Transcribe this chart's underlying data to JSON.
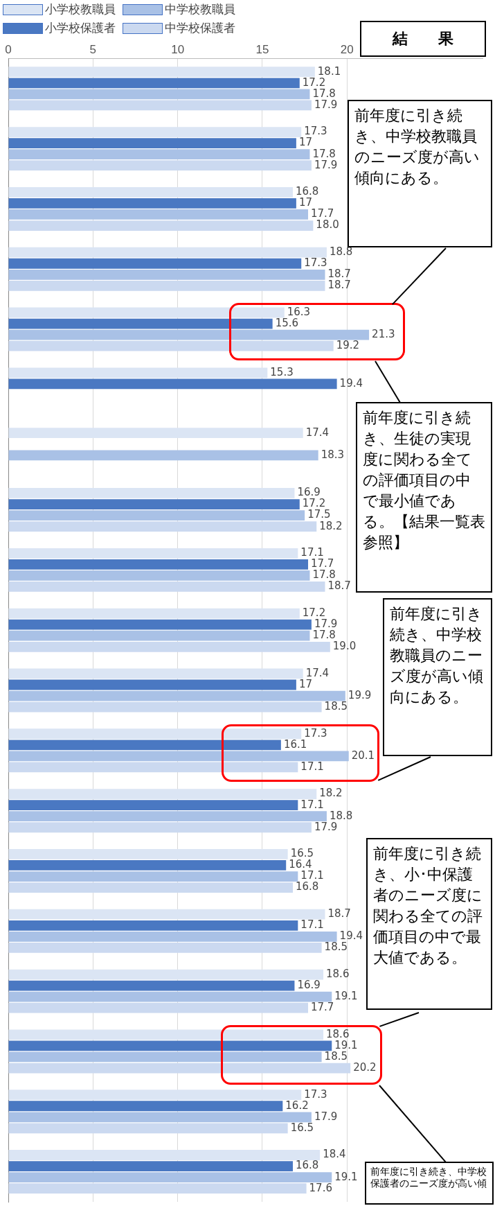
{
  "chart_data": {
    "type": "bar",
    "orientation": "horizontal",
    "categories": [
      null,
      null,
      null,
      null,
      null,
      null,
      null,
      null,
      null,
      null,
      null,
      null,
      null,
      null,
      null,
      null,
      null,
      null,
      null
    ],
    "series": [
      {
        "name": "小学校教職員",
        "color": "#dbe5f4",
        "values": [
          18.1,
          17.3,
          16.8,
          18.8,
          16.3,
          15.3,
          17.4,
          16.9,
          17.1,
          17.2,
          17.4,
          17.3,
          18.2,
          16.5,
          18.7,
          18.6,
          18.6,
          17.3,
          18.4
        ],
        "value_labels": [
          "18.1",
          "17.3",
          "16.8",
          "18.8",
          "16.3",
          "15.3",
          "17.4",
          "16.9",
          "17.1",
          "17.2",
          "17.4",
          "17.3",
          "18.2",
          "16.5",
          "18.7",
          "18.6",
          "18.6",
          "17.3",
          "18.4"
        ]
      },
      {
        "name": "小学校保護者",
        "color": "#4a78c2",
        "values": [
          17.2,
          17,
          17,
          17.3,
          15.6,
          19.4,
          null,
          17.2,
          17.7,
          17.9,
          17,
          16.1,
          17.1,
          16.4,
          17.1,
          16.9,
          19.1,
          16.2,
          16.8
        ],
        "value_labels": [
          "17.2",
          "17",
          "17",
          "17.3",
          "15.6",
          "19.4",
          null,
          "17.2",
          "17.7",
          "17.9",
          "17",
          "16.1",
          "17.1",
          "16.4",
          "17.1",
          "16.9",
          "19.1",
          "16.2",
          "16.8"
        ]
      },
      {
        "name": "中学校教職員",
        "color": "#a9c1e6",
        "values": [
          17.8,
          17.8,
          17.7,
          18.7,
          21.3,
          null,
          18.3,
          17.5,
          17.8,
          17.8,
          19.9,
          20.1,
          18.8,
          17.1,
          19.4,
          19.1,
          18.5,
          17.9,
          19.1
        ],
        "value_labels": [
          "17.8",
          "17.8",
          "17.7",
          "18.7",
          "21.3",
          null,
          "18.3",
          "17.5",
          "17.8",
          "17.8",
          "19.9",
          "20.1",
          "18.8",
          "17.1",
          "19.4",
          "19.1",
          "18.5",
          "17.9",
          "19.1"
        ]
      },
      {
        "name": "中学校保護者",
        "color": "#cbd9f0",
        "values": [
          17.9,
          17.9,
          18.0,
          18.7,
          19.2,
          null,
          null,
          18.2,
          18.7,
          19.0,
          18.5,
          17.1,
          17.9,
          16.8,
          18.5,
          17.7,
          20.2,
          16.5,
          17.6
        ],
        "value_labels": [
          "17.9",
          "17.9",
          "18.0",
          "18.7",
          "19.2",
          null,
          null,
          "18.2",
          "18.7",
          "19.0",
          "18.5",
          "17.1",
          "17.9",
          "16.8",
          "18.5",
          "17.7",
          "20.2",
          "16.5",
          "17.6"
        ]
      }
    ],
    "xlim": [
      0,
      28
    ],
    "xticks": [
      0,
      5,
      10,
      15,
      20
    ],
    "grid": "x",
    "legend": "top left",
    "tick_labels": "x",
    "annotations": [
      "結　　果",
      "前年度に引き続き、中学校教職員のニーズ度が高い傾向にある。",
      "前年度に引き続き、生徒の実現度に関わる全ての評価項目の中で最小値である。【結果一覧表参照】",
      "前年度に引き続き、中学校教職員のニーズ度が高い傾向にある。",
      "前年度に引き続き、小･中保護者のニーズ度に関わる全ての評価項目の中で最大値である。",
      "前年度に引き続き、中学校保護者のニーズ度が高い傾"
    ]
  }
}
